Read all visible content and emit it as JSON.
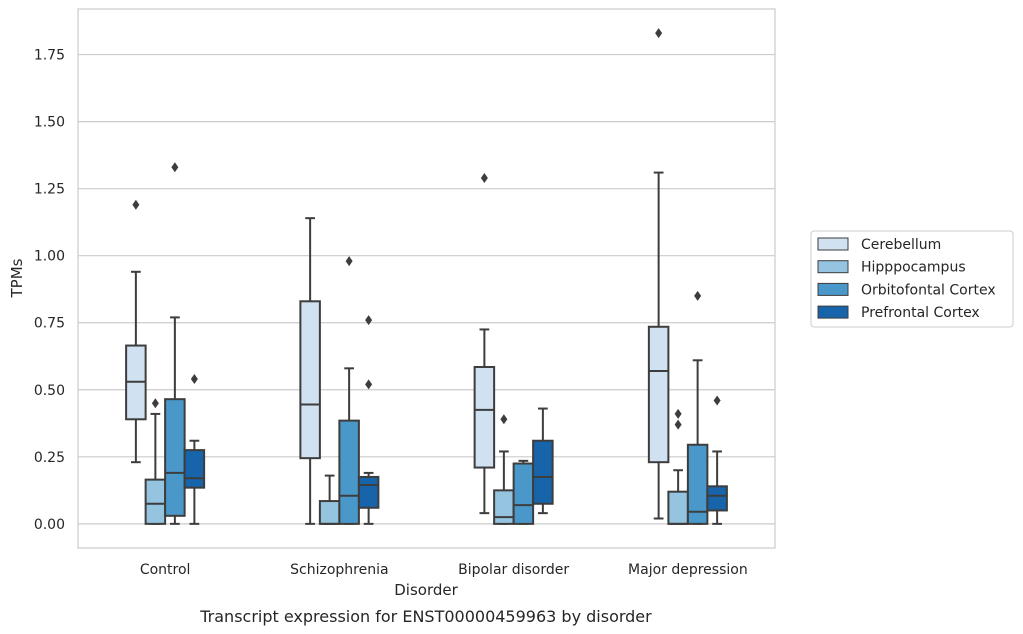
{
  "caption": "Transcript expression for ENST00000459963 by disorder",
  "chart_data": {
    "type": "box",
    "title": "",
    "xlabel": "Disorder",
    "ylabel": "TPMs",
    "categories": [
      "Control",
      "Schizophrenia",
      "Bipolar disorder",
      "Major depression"
    ],
    "ylim": [
      -0.09,
      1.92
    ],
    "yticks": [
      "0.00",
      "0.25",
      "0.50",
      "0.75",
      "1.00",
      "1.25",
      "1.50",
      "1.75"
    ],
    "grid": "horizontal",
    "legend_placement": "outside-right",
    "series": [
      {
        "name": "Cerebellum",
        "color": "#d0e1f2",
        "boxes": [
          {
            "whislo": 0.23,
            "q1": 0.39,
            "med": 0.53,
            "q3": 0.665,
            "whishi": 0.94,
            "fliers": [
              1.19
            ]
          },
          {
            "whislo": 0.0,
            "q1": 0.245,
            "med": 0.445,
            "q3": 0.83,
            "whishi": 1.14,
            "fliers": []
          },
          {
            "whislo": 0.04,
            "q1": 0.21,
            "med": 0.425,
            "q3": 0.585,
            "whishi": 0.725,
            "fliers": [
              1.29
            ]
          },
          {
            "whislo": 0.02,
            "q1": 0.23,
            "med": 0.57,
            "q3": 0.735,
            "whishi": 1.31,
            "fliers": [
              1.83
            ]
          }
        ]
      },
      {
        "name": "Hipppocampus",
        "color": "#94c4df",
        "boxes": [
          {
            "whislo": 0.0,
            "q1": 0.0,
            "med": 0.075,
            "q3": 0.165,
            "whishi": 0.41,
            "fliers": [
              0.45
            ]
          },
          {
            "whislo": 0.0,
            "q1": 0.0,
            "med": 0.0,
            "q3": 0.085,
            "whishi": 0.18,
            "fliers": []
          },
          {
            "whislo": 0.0,
            "q1": 0.0,
            "med": 0.025,
            "q3": 0.125,
            "whishi": 0.27,
            "fliers": [
              0.39
            ]
          },
          {
            "whislo": 0.0,
            "q1": 0.0,
            "med": 0.0,
            "q3": 0.12,
            "whishi": 0.2,
            "fliers": [
              0.37,
              0.41
            ]
          }
        ]
      },
      {
        "name": "Orbitofontal Cortex",
        "color": "#4a98c9",
        "boxes": [
          {
            "whislo": 0.0,
            "q1": 0.03,
            "med": 0.19,
            "q3": 0.465,
            "whishi": 0.77,
            "fliers": [
              1.33
            ]
          },
          {
            "whislo": 0.0,
            "q1": 0.0,
            "med": 0.105,
            "q3": 0.385,
            "whishi": 0.58,
            "fliers": [
              0.98
            ]
          },
          {
            "whislo": 0.0,
            "q1": 0.0,
            "med": 0.07,
            "q3": 0.225,
            "whishi": 0.235,
            "fliers": []
          },
          {
            "whislo": 0.0,
            "q1": 0.0,
            "med": 0.045,
            "q3": 0.295,
            "whishi": 0.61,
            "fliers": [
              0.85
            ]
          }
        ]
      },
      {
        "name": "Prefrontal Cortex",
        "color": "#1764ab",
        "boxes": [
          {
            "whislo": 0.0,
            "q1": 0.135,
            "med": 0.17,
            "q3": 0.275,
            "whishi": 0.31,
            "fliers": [
              0.54
            ]
          },
          {
            "whislo": 0.0,
            "q1": 0.06,
            "med": 0.145,
            "q3": 0.175,
            "whishi": 0.19,
            "fliers": [
              0.52,
              0.76
            ]
          },
          {
            "whislo": 0.04,
            "q1": 0.075,
            "med": 0.175,
            "q3": 0.31,
            "whishi": 0.43,
            "fliers": []
          },
          {
            "whislo": 0.0,
            "q1": 0.05,
            "med": 0.105,
            "q3": 0.14,
            "whishi": 0.27,
            "fliers": [
              0.46
            ]
          }
        ]
      }
    ]
  }
}
